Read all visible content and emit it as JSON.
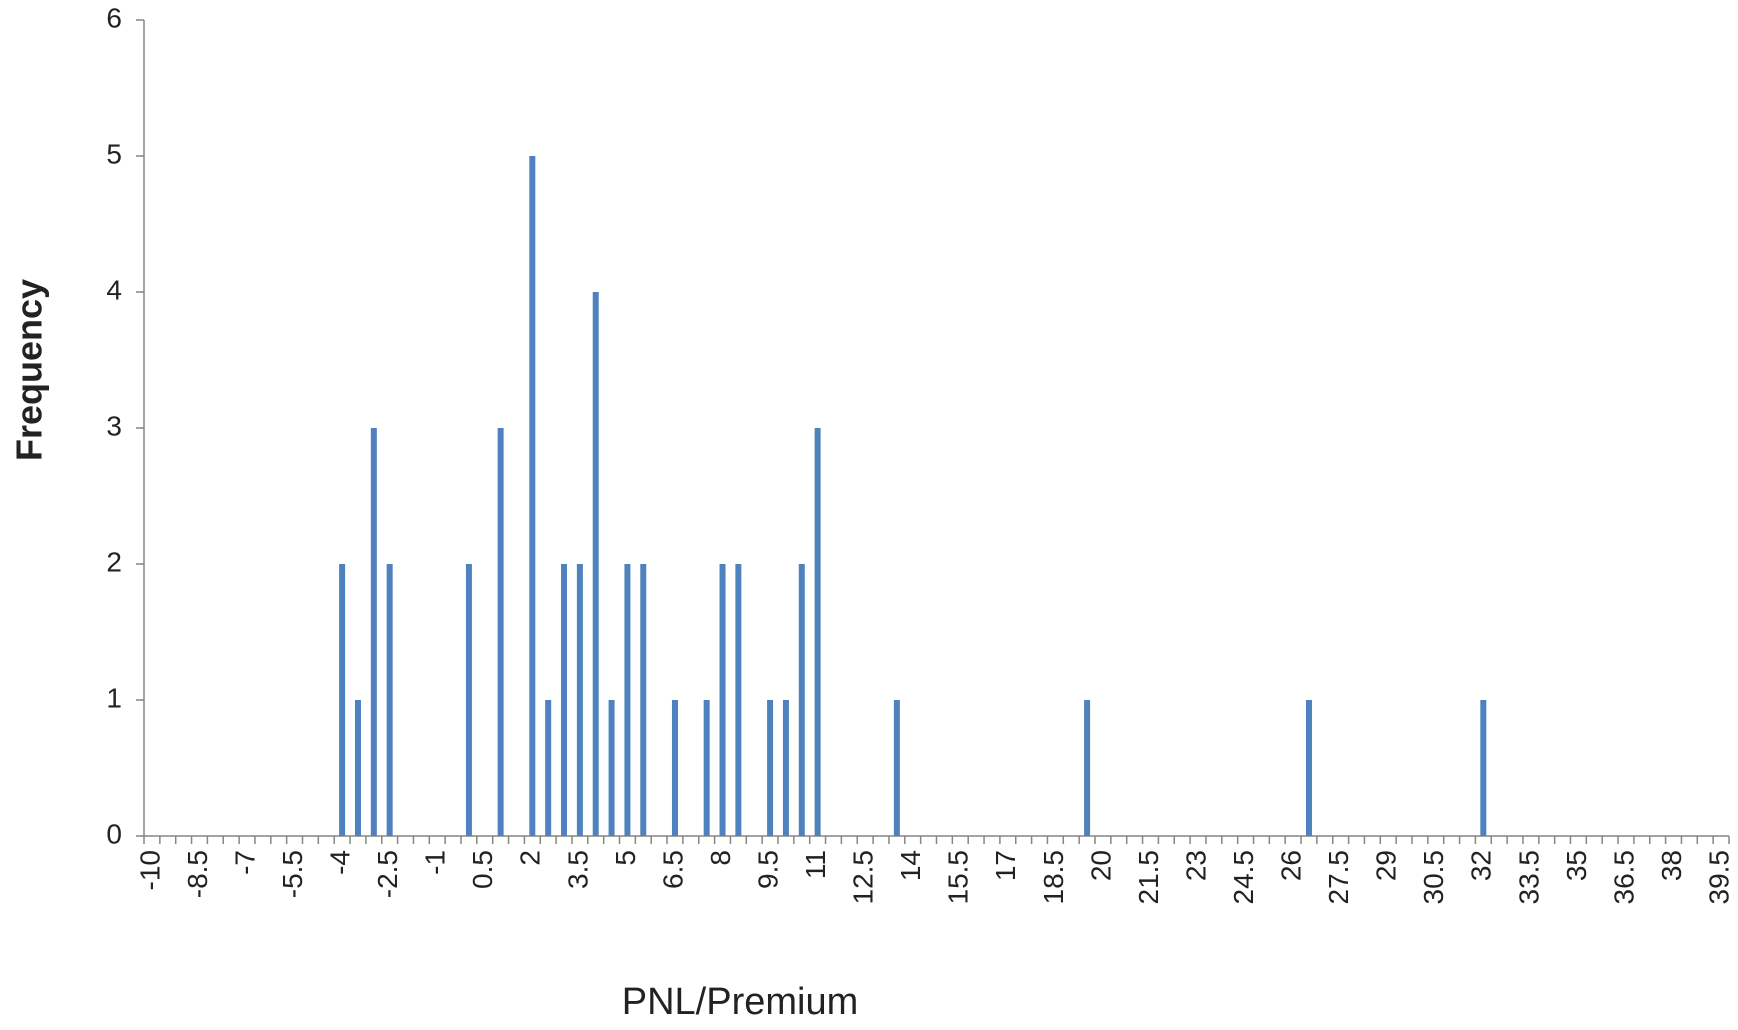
{
  "chart_data": {
    "type": "bar",
    "x_label": "PNL/Premium",
    "y_label": "Frequency",
    "categories": [
      "-10",
      null,
      null,
      "-8.5",
      null,
      null,
      "-7",
      null,
      null,
      "-5.5",
      null,
      null,
      "-4",
      null,
      null,
      "-2.5",
      null,
      null,
      "-1",
      null,
      null,
      "0.5",
      null,
      null,
      "2",
      null,
      null,
      "3.5",
      null,
      null,
      "5",
      null,
      null,
      "6.5",
      null,
      null,
      "8",
      null,
      null,
      "9.5",
      null,
      null,
      "11",
      null,
      null,
      "12.5",
      null,
      null,
      "14",
      null,
      null,
      "15.5",
      null,
      null,
      "17",
      null,
      null,
      "18.5",
      null,
      null,
      "20",
      null,
      null,
      "21.5",
      null,
      null,
      "23",
      null,
      null,
      "24.5",
      null,
      null,
      "26",
      null,
      null,
      "27.5",
      null,
      null,
      "29",
      null,
      null,
      "30.5",
      null,
      null,
      "32",
      null,
      null,
      "33.5",
      null,
      null,
      "35",
      null,
      null,
      "36.5",
      null,
      null,
      "38",
      null,
      null,
      "39.5"
    ],
    "values": [
      0,
      0,
      0,
      0,
      0,
      0,
      0,
      0,
      0,
      0,
      0,
      0,
      2,
      1,
      3,
      2,
      0,
      0,
      0,
      0,
      2,
      0,
      3,
      0,
      5,
      1,
      2,
      2,
      4,
      1,
      2,
      2,
      0,
      1,
      0,
      1,
      2,
      2,
      0,
      1,
      1,
      2,
      3,
      0,
      0,
      0,
      0,
      1,
      0,
      0,
      0,
      0,
      0,
      0,
      0,
      0,
      0,
      0,
      0,
      1,
      0,
      0,
      0,
      0,
      0,
      0,
      0,
      0,
      0,
      0,
      0,
      0,
      0,
      1,
      0,
      0,
      0,
      0,
      0,
      0,
      0,
      0,
      0,
      0,
      1,
      0,
      0,
      0,
      0,
      0,
      0,
      0,
      0,
      0,
      0,
      0,
      0,
      0,
      0,
      0
    ],
    "color": "#4f81bd",
    "ylim": [
      0,
      6
    ],
    "yticks": [
      0,
      1,
      2,
      3,
      4,
      5,
      6
    ],
    "grid": false
  }
}
